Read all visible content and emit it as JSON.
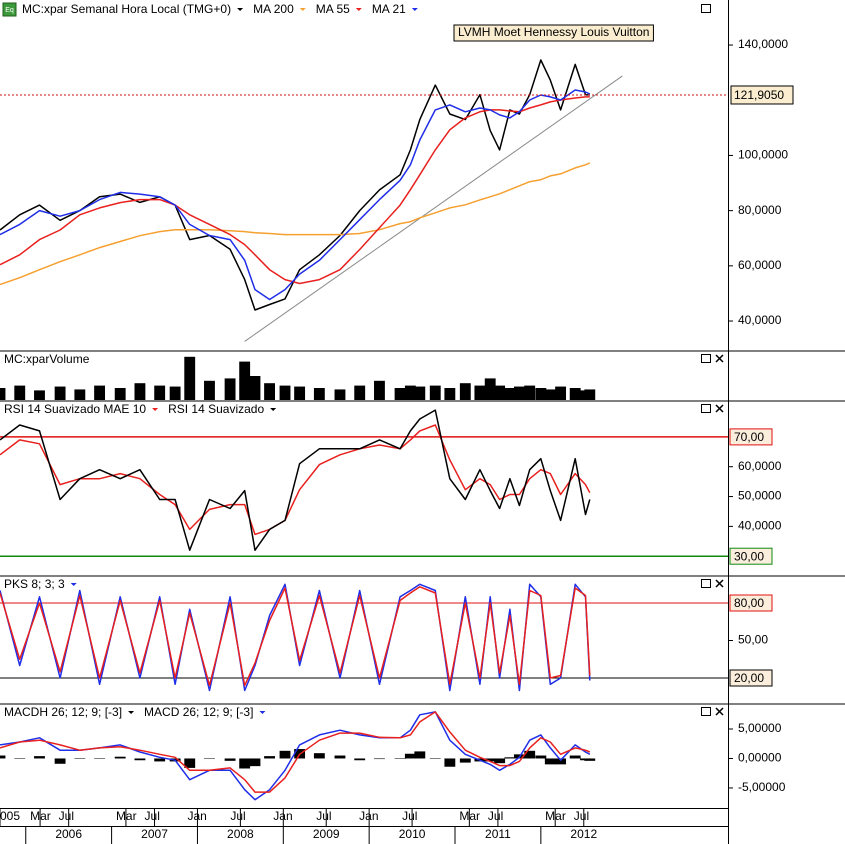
{
  "time_axis": {
    "xlim": [
      2005.7,
      2014.18
    ],
    "x": [
      2005.7,
      2005.93,
      2006.16,
      2006.4,
      2006.63,
      2006.86,
      2007.1,
      2007.33,
      2007.56,
      2007.74,
      2007.91,
      2008.14,
      2008.38,
      2008.55,
      2008.67,
      2008.84,
      2009.02,
      2009.19,
      2009.42,
      2009.66,
      2009.89,
      2010.12,
      2010.36,
      2010.48,
      2010.59,
      2010.77,
      2010.94,
      2011.12,
      2011.29,
      2011.41,
      2011.52,
      2011.64,
      2011.75,
      2011.87,
      2012.0,
      2012.11,
      2012.23,
      2012.4,
      2012.52,
      2012.57
    ],
    "month_ticks": [
      {
        "value": 2005.7,
        "label": "005"
      },
      {
        "value": 2006.167,
        "label": "Mar"
      },
      {
        "value": 2006.5,
        "label": "Jul"
      },
      {
        "value": 2007.167,
        "label": "Mar"
      },
      {
        "value": 2007.5,
        "label": "Jul"
      },
      {
        "value": 2008.0,
        "label": "Jan"
      },
      {
        "value": 2008.5,
        "label": "Jul"
      },
      {
        "value": 2009.0,
        "label": "Jan"
      },
      {
        "value": 2009.5,
        "label": "Jul"
      },
      {
        "value": 2010.0,
        "label": "Jan"
      },
      {
        "value": 2010.5,
        "label": "Jul"
      },
      {
        "value": 2011.167,
        "label": "Mar"
      },
      {
        "value": 2011.5,
        "label": "Jul"
      },
      {
        "value": 2012.167,
        "label": "Mar"
      },
      {
        "value": 2012.5,
        "label": "Jul"
      }
    ],
    "year_ticks": [
      2006,
      2007,
      2008,
      2009,
      2010,
      2011,
      2012
    ]
  },
  "chart_data": [
    {
      "type": "line",
      "annotation": "LVMH Moet Hennessy Louis Vuitton",
      "ylim": [
        29.5,
        155.6
      ],
      "yticks": [
        {
          "value": 140,
          "label": "140,0000"
        },
        {
          "value": 100,
          "label": "100,0000"
        },
        {
          "value": 80,
          "label": "80,0000"
        },
        {
          "value": 60,
          "label": "60,0000"
        },
        {
          "value": 40,
          "label": "40,0000"
        }
      ],
      "last_value": {
        "value": 121.905,
        "label": "121,9050",
        "color": "#d01010"
      },
      "trendline": {
        "x": [
          2008.55,
          2012.95
        ],
        "y": [
          32.6,
          128.8
        ],
        "color": "#8a8a8a"
      },
      "series": [
        {
          "name": "MC:xpar Semanal Hora Local (TMG+0)",
          "color": "#000000",
          "values": [
            73,
            78.5,
            82,
            76.5,
            80,
            85,
            86,
            83,
            85,
            82,
            69.5,
            71,
            66,
            55,
            44,
            46,
            48,
            58.6,
            64,
            71,
            80,
            87.5,
            93,
            102,
            113,
            125.5,
            115,
            113,
            122,
            109,
            102,
            116.5,
            115,
            122,
            134.6,
            127.3,
            116.5,
            133,
            122,
            121.9
          ]
        },
        {
          "name": "MA 200",
          "color": "#f5a030",
          "values": [
            53.2,
            55.7,
            58.6,
            61.5,
            64,
            66.6,
            68.8,
            70.9,
            72.4,
            73.1,
            73.1,
            73.1,
            72.7,
            72.4,
            72,
            71.7,
            71.3,
            71.3,
            71.3,
            71.3,
            71.7,
            73.1,
            75.3,
            76,
            77.4,
            79.2,
            81,
            82.1,
            83.9,
            85,
            86.1,
            87.6,
            89,
            90.5,
            91.2,
            92.6,
            93.3,
            95.5,
            96.6,
            97.3
          ]
        },
        {
          "name": "MA 55",
          "color": "#e8201e",
          "values": [
            60.4,
            64,
            69.5,
            73,
            78.5,
            81,
            82.9,
            84,
            84,
            82,
            78.5,
            75,
            71.3,
            67.7,
            64,
            58.6,
            55,
            53.6,
            55,
            58.6,
            65.9,
            73.8,
            82,
            87.6,
            93,
            102,
            109.3,
            113.6,
            115.8,
            116.5,
            116.5,
            116.1,
            115.8,
            117.2,
            118.3,
            119.4,
            120.1,
            120.8,
            121.2,
            121.2
          ]
        },
        {
          "name": "MA 21",
          "color": "#1f2ee8",
          "values": [
            71.3,
            75,
            80,
            78,
            80,
            84,
            86.6,
            86,
            85,
            82,
            75,
            71,
            69.5,
            62,
            51.4,
            47.8,
            51.4,
            57,
            62,
            69.5,
            76.7,
            84,
            91,
            96.6,
            105.6,
            116.5,
            118.3,
            115.8,
            117.2,
            116.5,
            114.7,
            113.6,
            115.8,
            120.1,
            121.9,
            121.2,
            120.1,
            123.7,
            123,
            122.3
          ]
        }
      ]
    },
    {
      "type": "bar",
      "title": "MC:xparVolume",
      "ylim": [
        0,
        100
      ],
      "series": [
        {
          "color": "#000000",
          "values": [
            25,
            30,
            20,
            28,
            22,
            30,
            25,
            35,
            30,
            28,
            90,
            40,
            45,
            80,
            50,
            35,
            30,
            28,
            25,
            22,
            30,
            40,
            25,
            30,
            28,
            30,
            25,
            35,
            30,
            45,
            30,
            25,
            28,
            30,
            25,
            22,
            28,
            25,
            20,
            22
          ]
        }
      ]
    },
    {
      "type": "line",
      "ylim": [
        23.7,
        81.7
      ],
      "yticks": [
        {
          "value": 60,
          "label": "60,0000"
        },
        {
          "value": 50,
          "label": "50,0000"
        },
        {
          "value": 40,
          "label": "40,0000"
        }
      ],
      "levels": [
        {
          "value": 70,
          "label": "70,00",
          "color": "#e01010"
        },
        {
          "value": 30,
          "label": "30,00",
          "color": "#108a10"
        }
      ],
      "series": [
        {
          "name": "RSI 14 Suavizado MAE 10",
          "color": "#e8201e",
          "values": [
            64,
            69,
            67.7,
            54,
            56,
            56,
            57.7,
            56,
            50.7,
            47.3,
            39,
            45.7,
            47.3,
            47.3,
            37.3,
            39,
            42,
            52.3,
            60.7,
            64,
            66,
            67.3,
            66,
            69,
            72,
            74,
            62.3,
            52.3,
            56,
            54,
            49,
            50.7,
            50.7,
            56,
            59,
            57.7,
            50.7,
            57.7,
            54,
            51.3
          ]
        },
        {
          "name": "RSI 14 Suavizado",
          "color": "#000000",
          "values": [
            69,
            74,
            72,
            49,
            56,
            59,
            56,
            59,
            49,
            49,
            32,
            49,
            46,
            52,
            32,
            39,
            42,
            61,
            66,
            66,
            66,
            69,
            66,
            72,
            76,
            79,
            56,
            49,
            59,
            52,
            46,
            56,
            47,
            59,
            62.7,
            52,
            42,
            62.7,
            44,
            49
          ]
        }
      ]
    },
    {
      "type": "line",
      "ylim": [
        0,
        100.8
      ],
      "yticks": [
        {
          "value": 50,
          "label": "50,00"
        }
      ],
      "levels": [
        {
          "value": 80,
          "label": "80,00",
          "color": "#e01010"
        },
        {
          "value": 20,
          "label": "20,00",
          "color": "#000000"
        }
      ],
      "series": [
        {
          "name": "PKS 8; 3; 3",
          "color": "#1f2ee8",
          "values": [
            90,
            30,
            85,
            20,
            90,
            15,
            85,
            20,
            85,
            15,
            75,
            10,
            85,
            10,
            30,
            70,
            95,
            30,
            90,
            20,
            90,
            15,
            85,
            90,
            95,
            90,
            10,
            85,
            15,
            85,
            20,
            75,
            10,
            95,
            85,
            15,
            20,
            95,
            85,
            18
          ]
        },
        {
          "color": "#e8201e",
          "values": [
            88,
            35,
            80,
            25,
            86,
            20,
            82,
            24,
            82,
            20,
            72,
            14,
            80,
            14,
            32,
            66,
            92,
            34,
            86,
            24,
            86,
            20,
            82,
            88,
            93,
            88,
            15,
            80,
            20,
            80,
            24,
            70,
            15,
            90,
            86,
            20,
            22,
            92,
            86,
            22
          ]
        }
      ]
    },
    {
      "type": "line",
      "ylim": [
        -8.4,
        9.07
      ],
      "yticks": [
        {
          "value": 5,
          "label": "5,00000"
        },
        {
          "value": 0,
          "label": "0,00000"
        },
        {
          "value": -5,
          "label": "-5,00000"
        }
      ],
      "series": [
        {
          "name": "MACDH 26; 12; 9; [-3]",
          "type": "bar",
          "color": "#000000",
          "values": [
            0.5,
            0,
            0.4,
            -0.9,
            0,
            0,
            0.3,
            -0.3,
            -0.5,
            -0.5,
            -1.6,
            0,
            -0.4,
            -1.7,
            -1.3,
            0.4,
            1.3,
            1.6,
            0.9,
            0.5,
            -0.3,
            -0.1,
            0,
            0.8,
            1.2,
            0,
            -1.4,
            -0.7,
            -0.5,
            -0.5,
            -0.8,
            0.2,
            0.7,
            1.3,
            0.5,
            -1,
            -1,
            0.5,
            -0.3,
            -0.4
          ]
        },
        {
          "name": "MACD 26; 12; 9; [-3]",
          "color": "#1f2ee8",
          "values": [
            2.3,
            2.8,
            3.5,
            1.4,
            1.4,
            1.8,
            2.3,
            1.1,
            0.2,
            -0.3,
            -3.6,
            -2,
            -2,
            -5.3,
            -7,
            -5.3,
            -2,
            2.3,
            4,
            4.8,
            4,
            3.5,
            3.5,
            4.8,
            7.4,
            7.9,
            3.1,
            0.7,
            -0.3,
            -1,
            -2,
            -1,
            0.2,
            3.1,
            4,
            1.8,
            -0.3,
            2.3,
            1.1,
            0.7
          ]
        },
        {
          "color": "#e8201e",
          "values": [
            1.8,
            2.8,
            3.1,
            2.3,
            1.4,
            1.8,
            2,
            1.4,
            0.7,
            0.2,
            -2,
            -2,
            -1.6,
            -3.6,
            -5.7,
            -5.7,
            -3.3,
            0.7,
            3.1,
            4.3,
            4.3,
            3.6,
            3.5,
            4,
            6.2,
            7.9,
            4.5,
            1.4,
            0.2,
            -0.5,
            -1.2,
            -1.2,
            -0.5,
            1.8,
            3.5,
            2.8,
            0.7,
            1.8,
            1.4,
            1.1
          ]
        }
      ]
    }
  ]
}
